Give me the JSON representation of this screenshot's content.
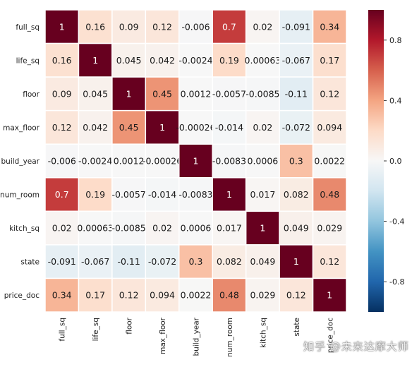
{
  "chart_data": {
    "type": "heatmap",
    "title": "",
    "xlabel": "",
    "ylabel": "",
    "variables": [
      "full_sq",
      "life_sq",
      "floor",
      "max_floor",
      "build_year",
      "num_room",
      "kitch_sq",
      "state",
      "price_doc"
    ],
    "values": [
      [
        1,
        0.16,
        0.09,
        0.12,
        -0.006,
        0.7,
        0.02,
        -0.091,
        0.34
      ],
      [
        0.16,
        1,
        0.045,
        0.042,
        -0.0024,
        0.19,
        0.00063,
        -0.067,
        0.17
      ],
      [
        0.09,
        0.045,
        1,
        0.45,
        0.0012,
        -0.0057,
        -0.0085,
        -0.11,
        0.12
      ],
      [
        0.12,
        0.042,
        0.45,
        1,
        -0.00026,
        -0.014,
        0.02,
        -0.072,
        0.094
      ],
      [
        -0.006,
        -0.0024,
        0.0012,
        -0.00026,
        1,
        -0.0083,
        0.0006,
        0.3,
        0.0022
      ],
      [
        0.7,
        0.19,
        -0.0057,
        -0.014,
        -0.0083,
        1,
        0.017,
        0.082,
        0.48
      ],
      [
        0.02,
        0.00063,
        -0.0085,
        0.02,
        0.0006,
        0.017,
        1,
        0.049,
        0.029
      ],
      [
        -0.091,
        -0.067,
        -0.11,
        -0.072,
        0.3,
        0.082,
        0.049,
        1,
        0.12
      ],
      [
        0.34,
        0.17,
        0.12,
        0.094,
        0.0022,
        0.48,
        0.029,
        0.12,
        1
      ]
    ],
    "labels": [
      [
        "1",
        "0.16",
        "0.09",
        "0.12",
        "-0.006",
        "0.7",
        "0.02",
        "-0.091",
        "0.34"
      ],
      [
        "0.16",
        "1",
        "0.045",
        "0.042",
        "-0.0024",
        "0.19",
        "0.00063",
        "-0.067",
        "0.17"
      ],
      [
        "0.09",
        "0.045",
        "1",
        "0.45",
        "0.0012",
        "-0.0057",
        "-0.0085",
        "-0.11",
        "0.12"
      ],
      [
        "0.12",
        "0.042",
        "0.45",
        "1",
        "-0.00026",
        "-0.014",
        "0.02",
        "-0.072",
        "0.094"
      ],
      [
        "-0.006",
        "-0.0024",
        "0.0012",
        "-0.00026",
        "1",
        "-0.0083",
        "0.0006",
        "0.3",
        "0.0022"
      ],
      [
        "0.7",
        "0.19",
        "-0.0057",
        "-0.014",
        "-0.0083",
        "1",
        "0.017",
        "0.082",
        "0.48"
      ],
      [
        "0.02",
        "0.00063",
        "-0.0085",
        "0.02",
        "0.0006",
        "0.017",
        "1",
        "0.049",
        "0.029"
      ],
      [
        "-0.091",
        "-0.067",
        "-0.11",
        "-0.072",
        "0.3",
        "0.082",
        "0.049",
        "1",
        "0.12"
      ],
      [
        "0.34",
        "0.17",
        "0.12",
        "0.094",
        "0.0022",
        "0.48",
        "0.029",
        "0.12",
        "1"
      ]
    ],
    "colorbar": {
      "range": [
        -1,
        1
      ],
      "ticks": [
        0.8,
        0.4,
        0.0,
        -0.4,
        -0.8
      ],
      "tick_labels": [
        "0.8",
        "0.4",
        "0.0",
        "-0.4",
        "-0.8"
      ],
      "colormap": "RdBu_r"
    },
    "colors": {
      "low": "#053061",
      "mid": "#f7f7f7",
      "high": "#67001f",
      "cell_border": "#ffffff",
      "text_dark": "#1a1a1a",
      "text_light": "#ffffff"
    }
  },
  "watermark": "知乎 @未来达摩大师"
}
